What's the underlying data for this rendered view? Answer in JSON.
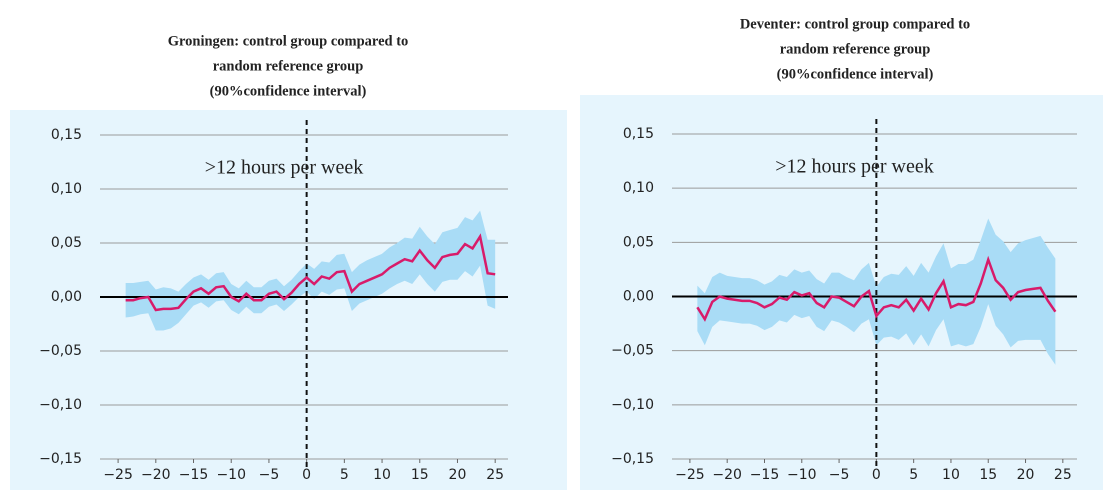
{
  "chart_data": [
    {
      "type": "line",
      "title": [
        "Groningen: control group compared to",
        "random reference group",
        "(90%confidence interval)"
      ],
      "annotation": ">12 hours per week",
      "color": "#d81b6a",
      "band_color": "#a9dcf6",
      "background": "#e6f5fd",
      "vline": 0,
      "grid": true,
      "xlim": [
        -27.4,
        26.7
      ],
      "ylim": [
        -0.15,
        0.15
      ],
      "xticks": [
        {
          "value": -25,
          "label": "−25"
        },
        {
          "value": -20,
          "label": "−20"
        },
        {
          "value": -15,
          "label": "−15"
        },
        {
          "value": -10,
          "label": "−10"
        },
        {
          "value": -5,
          "label": "−5"
        },
        0,
        5,
        10,
        15,
        20,
        25
      ],
      "yticks": [
        {
          "value": -0.15,
          "label": "−0,15"
        },
        {
          "value": -0.1,
          "label": "−0,10"
        },
        {
          "value": -0.05,
          "label": "−0,05"
        },
        {
          "value": 0,
          "label": "0,00"
        },
        {
          "value": 0.05,
          "label": "0,05"
        },
        {
          "value": 0.1,
          "label": "0,10"
        },
        {
          "value": 0.15,
          "label": "0,15"
        }
      ],
      "x": [
        -24,
        -23,
        -22,
        -21,
        -20,
        -19,
        -18,
        -17,
        -16,
        -15,
        -14,
        -13,
        -12,
        -11,
        -10,
        -9,
        -8,
        -7,
        -6,
        -5,
        -4,
        -3,
        -2,
        -1,
        0,
        1,
        2,
        3,
        4,
        5,
        6,
        7,
        8,
        9,
        10,
        11,
        12,
        13,
        14,
        15,
        16,
        17,
        18,
        19,
        20,
        21,
        22,
        23,
        24,
        25
      ],
      "values": [
        -0.003,
        -0.003,
        -0.001,
        0.0,
        -0.012,
        -0.011,
        -0.011,
        -0.01,
        -0.002,
        0.005,
        0.008,
        0.003,
        0.009,
        0.01,
        0.0,
        -0.004,
        0.003,
        -0.003,
        -0.003,
        0.003,
        0.005,
        -0.002,
        0.004,
        0.012,
        0.018,
        0.012,
        0.019,
        0.017,
        0.023,
        0.024,
        0.005,
        0.012,
        0.015,
        0.018,
        0.021,
        0.027,
        0.031,
        0.035,
        0.033,
        0.043,
        0.034,
        0.027,
        0.037,
        0.039,
        0.04,
        0.049,
        0.045,
        0.056,
        0.022,
        0.021
      ],
      "lower": [
        -0.019,
        -0.018,
        -0.016,
        -0.015,
        -0.031,
        -0.031,
        -0.029,
        -0.024,
        -0.016,
        -0.008,
        -0.005,
        -0.01,
        -0.004,
        -0.003,
        -0.012,
        -0.016,
        -0.009,
        -0.015,
        -0.015,
        -0.009,
        -0.007,
        -0.013,
        -0.007,
        0.0,
        0.005,
        -0.002,
        0.005,
        0.002,
        0.007,
        0.008,
        -0.013,
        -0.006,
        -0.003,
        0.0,
        0.003,
        0.008,
        0.012,
        0.015,
        0.012,
        0.021,
        0.012,
        0.005,
        0.014,
        0.016,
        0.016,
        0.024,
        0.019,
        0.029,
        -0.008,
        -0.011
      ],
      "upper": [
        0.013,
        0.013,
        0.014,
        0.015,
        0.007,
        0.009,
        0.008,
        0.005,
        0.012,
        0.018,
        0.021,
        0.016,
        0.022,
        0.023,
        0.012,
        0.008,
        0.015,
        0.009,
        0.009,
        0.015,
        0.017,
        0.01,
        0.016,
        0.024,
        0.031,
        0.026,
        0.033,
        0.032,
        0.039,
        0.04,
        0.023,
        0.03,
        0.034,
        0.037,
        0.04,
        0.046,
        0.05,
        0.055,
        0.054,
        0.065,
        0.056,
        0.049,
        0.06,
        0.062,
        0.064,
        0.074,
        0.071,
        0.08,
        0.053,
        0.053
      ]
    },
    {
      "type": "line",
      "title": [
        "Deventer: control group compared to",
        "random reference group",
        "(90%confidence interval)"
      ],
      "annotation": ">12 hours per week",
      "color": "#d81b6a",
      "band_color": "#a9dcf6",
      "background": "#e6f5fd",
      "vline": 0,
      "grid": true,
      "xlim": [
        -27.4,
        26.9
      ],
      "ylim": [
        -0.15,
        0.15
      ],
      "xticks": [
        {
          "value": -25,
          "label": "−25"
        },
        {
          "value": -20,
          "label": "−20"
        },
        {
          "value": -15,
          "label": "−15"
        },
        {
          "value": -10,
          "label": "−10"
        },
        {
          "value": -5,
          "label": "−5"
        },
        0,
        5,
        10,
        15,
        20,
        25
      ],
      "yticks": [
        {
          "value": -0.15,
          "label": "−0,15"
        },
        {
          "value": -0.1,
          "label": "−0,10"
        },
        {
          "value": -0.05,
          "label": "−0,05"
        },
        {
          "value": 0,
          "label": "0,00"
        },
        {
          "value": 0.05,
          "label": "0,05"
        },
        {
          "value": 0.1,
          "label": "0,10"
        },
        {
          "value": 0.15,
          "label": "0,15"
        }
      ],
      "x": [
        -24,
        -23,
        -22,
        -21,
        -20,
        -19,
        -18,
        -17,
        -16,
        -15,
        -14,
        -13,
        -12,
        -11,
        -10,
        -9,
        -8,
        -7,
        -6,
        -5,
        -4,
        -3,
        -2,
        -1,
        0,
        1,
        2,
        3,
        4,
        5,
        6,
        7,
        8,
        9,
        10,
        11,
        12,
        13,
        14,
        15,
        16,
        17,
        18,
        19,
        20,
        21,
        22,
        23,
        24
      ],
      "values": [
        -0.01,
        -0.021,
        -0.005,
        0.0,
        -0.002,
        -0.003,
        -0.004,
        -0.004,
        -0.006,
        -0.01,
        -0.007,
        -0.001,
        -0.003,
        0.004,
        0.001,
        0.003,
        -0.006,
        -0.01,
        0.0,
        -0.001,
        -0.005,
        -0.009,
        0.0,
        0.005,
        -0.018,
        -0.01,
        -0.008,
        -0.01,
        -0.003,
        -0.013,
        -0.002,
        -0.012,
        0.003,
        0.014,
        -0.01,
        -0.007,
        -0.008,
        -0.005,
        0.012,
        0.034,
        0.015,
        0.008,
        -0.003,
        0.004,
        0.006,
        0.007,
        0.008,
        -0.004,
        -0.014
      ],
      "lower": [
        -0.032,
        -0.045,
        -0.028,
        -0.022,
        -0.023,
        -0.024,
        -0.025,
        -0.025,
        -0.027,
        -0.031,
        -0.028,
        -0.022,
        -0.024,
        -0.017,
        -0.02,
        -0.018,
        -0.028,
        -0.032,
        -0.022,
        -0.024,
        -0.028,
        -0.033,
        -0.025,
        -0.021,
        -0.045,
        -0.038,
        -0.037,
        -0.04,
        -0.034,
        -0.045,
        -0.035,
        -0.046,
        -0.031,
        -0.021,
        -0.046,
        -0.044,
        -0.046,
        -0.044,
        -0.028,
        -0.007,
        -0.027,
        -0.035,
        -0.047,
        -0.041,
        -0.04,
        -0.04,
        -0.04,
        -0.053,
        -0.063
      ],
      "upper": [
        0.01,
        0.003,
        0.018,
        0.022,
        0.019,
        0.018,
        0.017,
        0.017,
        0.015,
        0.011,
        0.014,
        0.02,
        0.018,
        0.025,
        0.022,
        0.024,
        0.016,
        0.012,
        0.022,
        0.022,
        0.018,
        0.015,
        0.025,
        0.031,
        0.009,
        0.018,
        0.021,
        0.02,
        0.028,
        0.019,
        0.031,
        0.022,
        0.037,
        0.049,
        0.026,
        0.03,
        0.03,
        0.034,
        0.052,
        0.072,
        0.057,
        0.051,
        0.041,
        0.049,
        0.052,
        0.054,
        0.056,
        0.045,
        0.035
      ]
    }
  ]
}
